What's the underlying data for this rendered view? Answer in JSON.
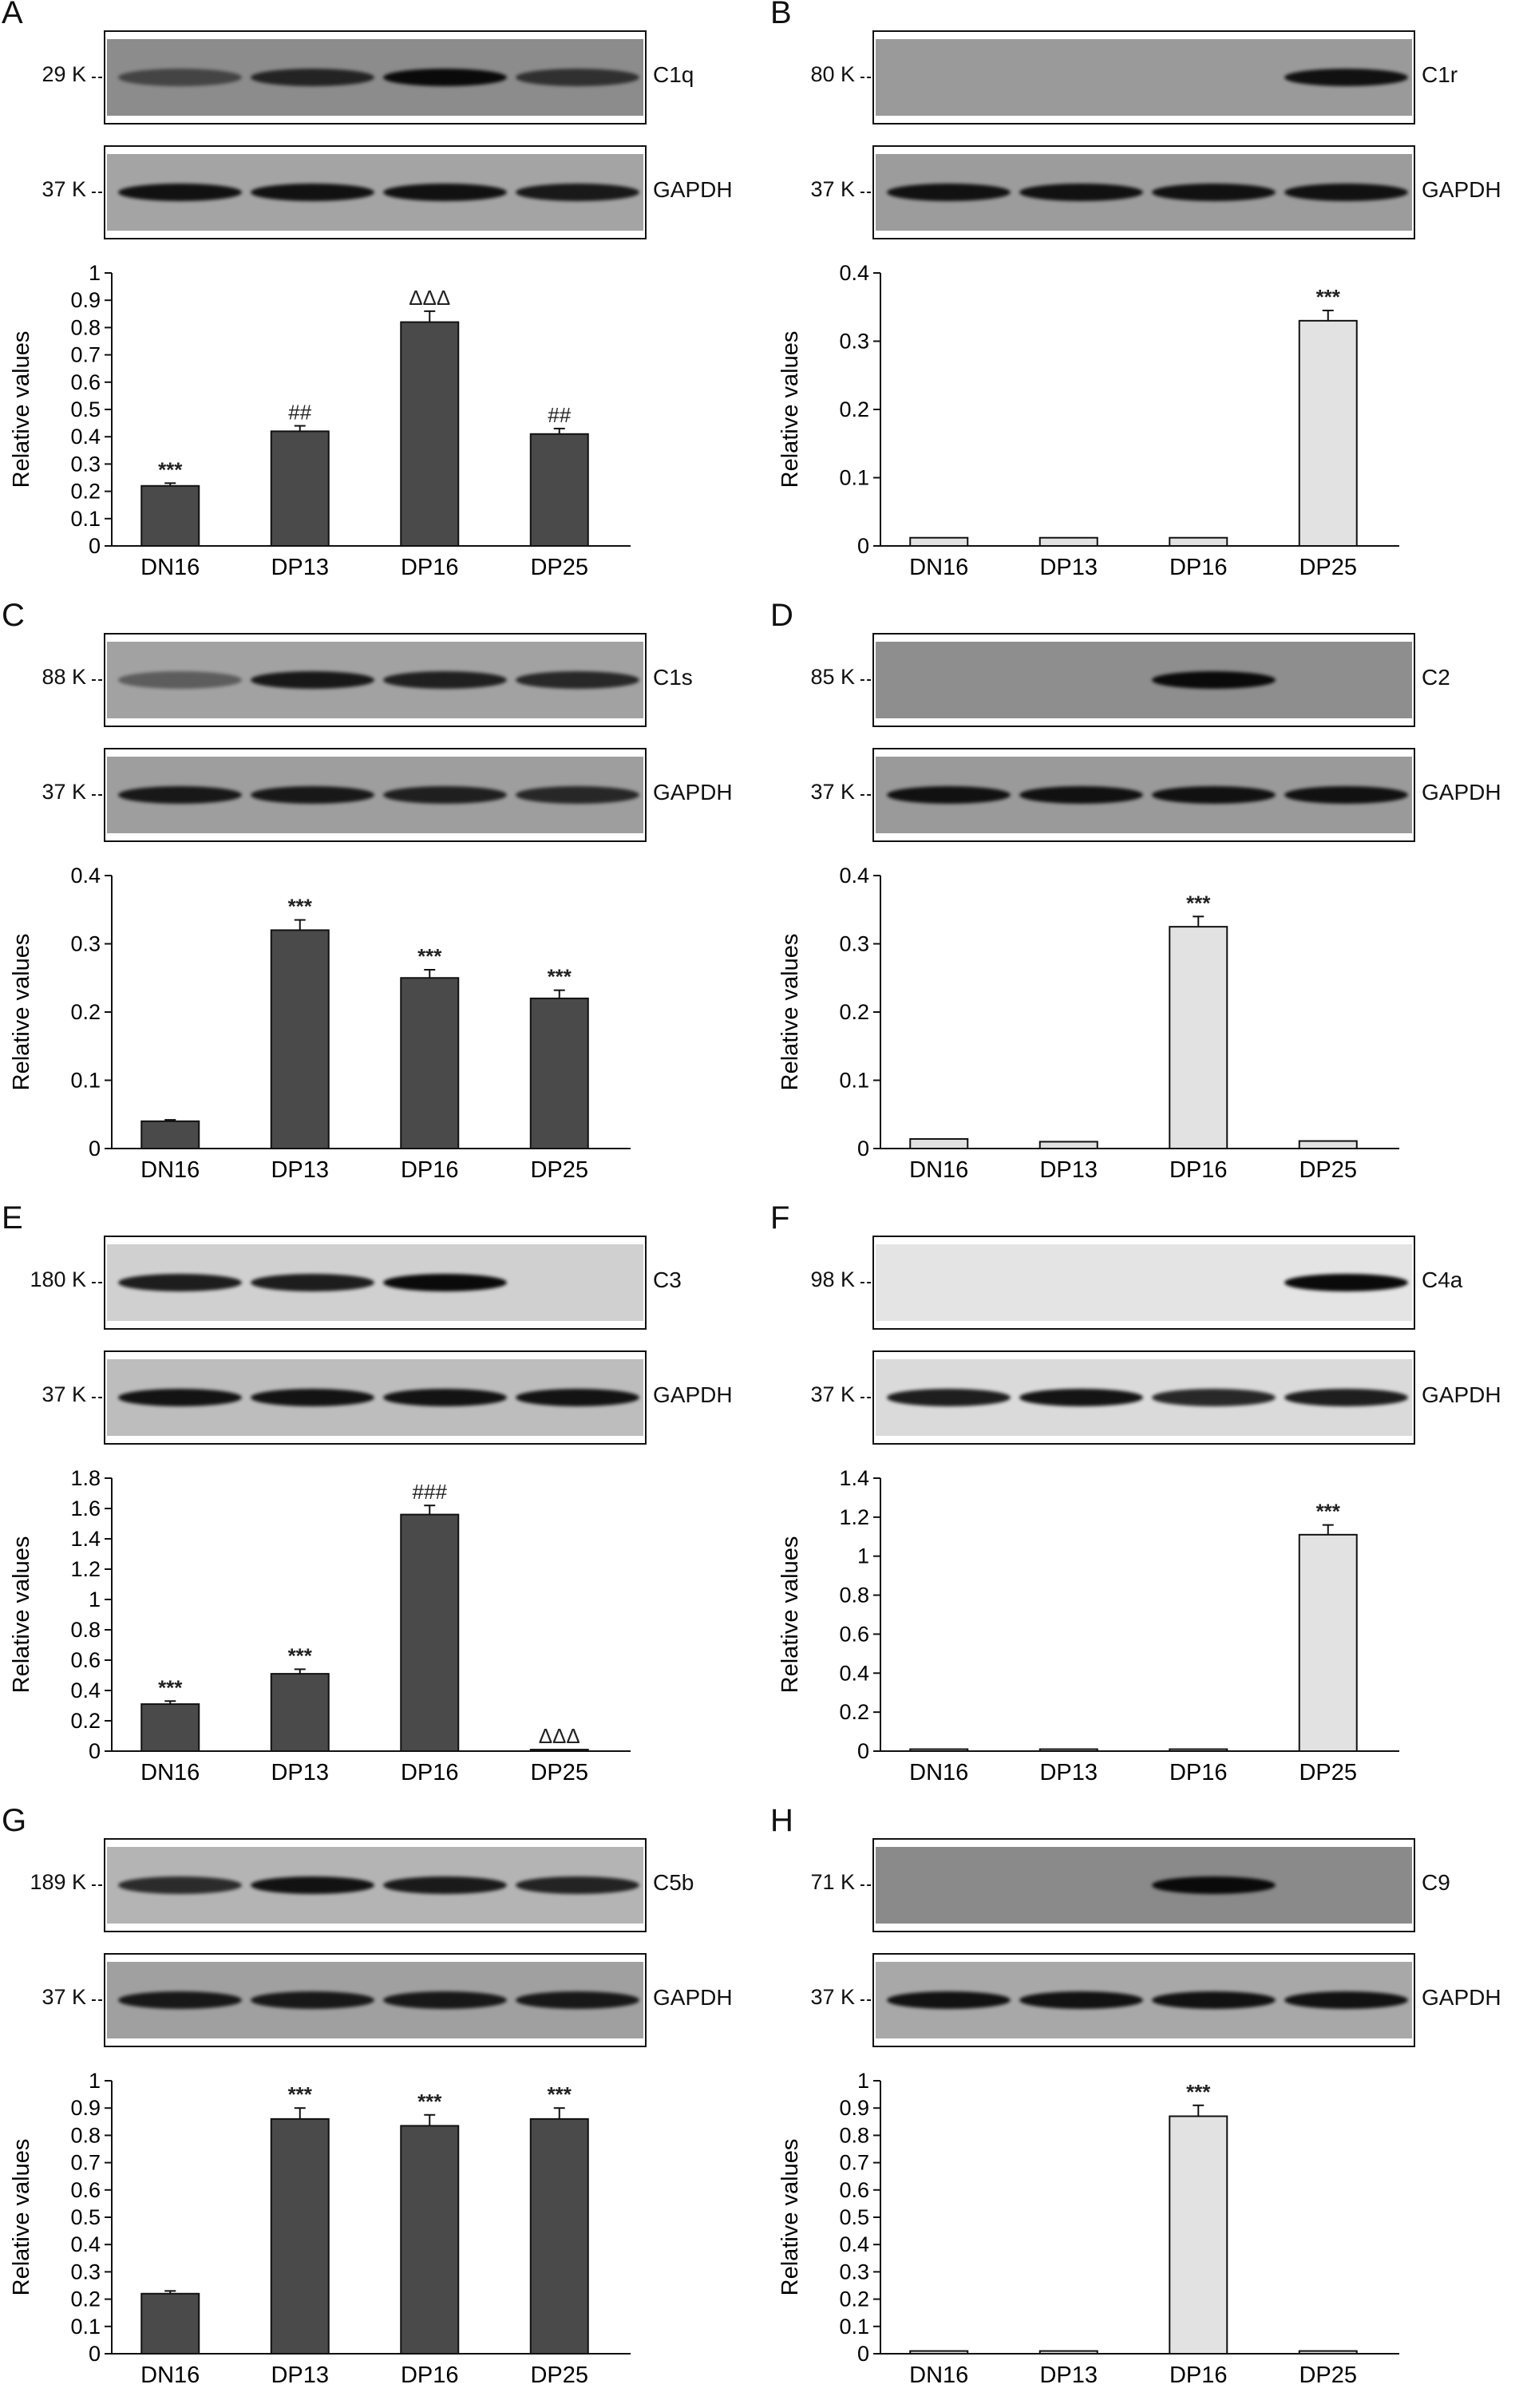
{
  "panels": [
    {
      "letter": "A",
      "protein": "C1q",
      "mw": "29 K",
      "ref_label": "GAPDH",
      "ref_mw": "37 K",
      "blot_bg": "#8c8c8c",
      "ref_bg": "#a4a4a4",
      "band_intensity": [
        0.55,
        0.8,
        1.0,
        0.7
      ],
      "ref_intensity": [
        0.95,
        0.95,
        0.95,
        0.9
      ],
      "chart_data": {
        "type": "bar",
        "categories": [
          "DN16",
          "DP13",
          "DP16",
          "DP25"
        ],
        "values": [
          0.22,
          0.42,
          0.82,
          0.41
        ],
        "errors": [
          0.01,
          0.02,
          0.04,
          0.02
        ],
        "annotations": [
          "***",
          "##",
          "ΔΔΔ",
          "##"
        ],
        "ylabel": "Relative values",
        "ylim": [
          0,
          1
        ],
        "yticks": [
          "0",
          "0.1",
          "0.2",
          "0.3",
          "0.4",
          "0.5",
          "0.6",
          "0.7",
          "0.8",
          "0.9",
          "1"
        ],
        "bar_style": "dark"
      }
    },
    {
      "letter": "B",
      "protein": "C1r",
      "mw": "80 K",
      "ref_label": "GAPDH",
      "ref_mw": "37 K",
      "blot_bg": "#9a9a9a",
      "ref_bg": "#9c9c9c",
      "band_intensity": [
        0,
        0,
        0,
        0.95
      ],
      "ref_intensity": [
        0.95,
        0.95,
        0.95,
        0.95
      ],
      "chart_data": {
        "type": "bar",
        "categories": [
          "DN16",
          "DP13",
          "DP16",
          "DP25"
        ],
        "values": [
          0.012,
          0.012,
          0.012,
          0.33
        ],
        "errors": [
          0,
          0,
          0,
          0.015
        ],
        "annotations": [
          "",
          "",
          "",
          "***"
        ],
        "ylabel": "Relative values",
        "ylim": [
          0,
          0.4
        ],
        "yticks": [
          "0",
          "0.1",
          "0.2",
          "0.3",
          "0.4"
        ],
        "bar_style": "light"
      }
    },
    {
      "letter": "C",
      "protein": "C1s",
      "mw": "88 K",
      "ref_label": "GAPDH",
      "ref_mw": "37 K",
      "blot_bg": "#a2a2a2",
      "ref_bg": "#9e9e9e",
      "band_intensity": [
        0.45,
        0.9,
        0.85,
        0.8
      ],
      "ref_intensity": [
        0.9,
        0.9,
        0.85,
        0.8
      ],
      "chart_data": {
        "type": "bar",
        "categories": [
          "DN16",
          "DP13",
          "DP16",
          "DP25"
        ],
        "values": [
          0.04,
          0.32,
          0.25,
          0.22
        ],
        "errors": [
          0.002,
          0.015,
          0.012,
          0.012
        ],
        "annotations": [
          "",
          "***",
          "***",
          "***"
        ],
        "ylabel": "Relative values",
        "ylim": [
          0,
          0.4
        ],
        "yticks": [
          "0",
          "0.1",
          "0.2",
          "0.3",
          "0.4"
        ],
        "bar_style": "dark"
      }
    },
    {
      "letter": "D",
      "protein": "C2",
      "mw": "85 K",
      "ref_label": "GAPDH",
      "ref_mw": "37 K",
      "blot_bg": "#8e8e8e",
      "ref_bg": "#9a9a9a",
      "band_intensity": [
        0,
        0,
        1.0,
        0
      ],
      "ref_intensity": [
        0.95,
        0.95,
        0.95,
        0.95
      ],
      "chart_data": {
        "type": "bar",
        "categories": [
          "DN16",
          "DP13",
          "DP16",
          "DP25"
        ],
        "values": [
          0.014,
          0.01,
          0.325,
          0.011
        ],
        "errors": [
          0,
          0,
          0.015,
          0
        ],
        "annotations": [
          "",
          "",
          "***",
          ""
        ],
        "ylabel": "Relative values",
        "ylim": [
          0,
          0.4
        ],
        "yticks": [
          "0",
          "0.1",
          "0.2",
          "0.3",
          "0.4"
        ],
        "bar_style": "light"
      }
    },
    {
      "letter": "E",
      "protein": "C3",
      "mw": "180 K",
      "ref_label": "GAPDH",
      "ref_mw": "37 K",
      "blot_bg": "#d0d0d0",
      "ref_bg": "#bdbdbd",
      "band_intensity": [
        0.9,
        0.9,
        1.0,
        0
      ],
      "ref_intensity": [
        0.95,
        0.95,
        0.95,
        0.95
      ],
      "chart_data": {
        "type": "bar",
        "categories": [
          "DN16",
          "DP13",
          "DP16",
          "DP25"
        ],
        "values": [
          0.31,
          0.51,
          1.56,
          0.01
        ],
        "errors": [
          0.02,
          0.03,
          0.06,
          0
        ],
        "annotations": [
          "***",
          "***",
          "###",
          "ΔΔΔ"
        ],
        "ylabel": "Relative values",
        "ylim": [
          0,
          1.8
        ],
        "yticks": [
          "0",
          "0.2",
          "0.4",
          "0.6",
          "0.8",
          "1",
          "1.2",
          "1.4",
          "1.6",
          "1.8"
        ],
        "bar_style": "dark"
      }
    },
    {
      "letter": "F",
      "protein": "C4a",
      "mw": "98 K",
      "ref_label": "GAPDH",
      "ref_mw": "37 K",
      "blot_bg": "#e4e4e4",
      "ref_bg": "#dadada",
      "band_intensity": [
        0,
        0,
        0,
        1.0
      ],
      "ref_intensity": [
        0.9,
        0.95,
        0.85,
        0.9
      ],
      "chart_data": {
        "type": "bar",
        "categories": [
          "DN16",
          "DP13",
          "DP16",
          "DP25"
        ],
        "values": [
          0.01,
          0.01,
          0.01,
          1.11
        ],
        "errors": [
          0,
          0,
          0,
          0.05
        ],
        "annotations": [
          "",
          "",
          "",
          "***"
        ],
        "ylabel": "Relative values",
        "ylim": [
          0,
          1.4
        ],
        "yticks": [
          "0",
          "0.2",
          "0.4",
          "0.6",
          "0.8",
          "1",
          "1.2",
          "1.4"
        ],
        "bar_style": "light"
      }
    },
    {
      "letter": "G",
      "protein": "C5b",
      "mw": "189 K",
      "ref_label": "GAPDH",
      "ref_mw": "37 K",
      "blot_bg": "#b4b4b4",
      "ref_bg": "#a0a0a0",
      "band_intensity": [
        0.8,
        0.95,
        0.9,
        0.85
      ],
      "ref_intensity": [
        0.9,
        0.9,
        0.9,
        0.9
      ],
      "chart_data": {
        "type": "bar",
        "categories": [
          "DN16",
          "DP13",
          "DP16",
          "DP25"
        ],
        "values": [
          0.22,
          0.86,
          0.835,
          0.86
        ],
        "errors": [
          0.01,
          0.04,
          0.04,
          0.04
        ],
        "annotations": [
          "",
          "***",
          "***",
          "***"
        ],
        "ylabel": "Relative values",
        "ylim": [
          0,
          1
        ],
        "yticks": [
          "0",
          "0.1",
          "0.2",
          "0.3",
          "0.4",
          "0.5",
          "0.6",
          "0.7",
          "0.8",
          "0.9",
          "1"
        ],
        "bar_style": "dark"
      }
    },
    {
      "letter": "H",
      "protein": "C9",
      "mw": "71 K",
      "ref_label": "GAPDH",
      "ref_mw": "37 K",
      "blot_bg": "#8a8a8a",
      "ref_bg": "#a8a8a8",
      "band_intensity": [
        0,
        0,
        1.0,
        0
      ],
      "ref_intensity": [
        0.95,
        0.95,
        0.95,
        0.95
      ],
      "chart_data": {
        "type": "bar",
        "categories": [
          "DN16",
          "DP13",
          "DP16",
          "DP25"
        ],
        "values": [
          0.01,
          0.01,
          0.87,
          0.01
        ],
        "errors": [
          0,
          0,
          0.04,
          0
        ],
        "annotations": [
          "",
          "",
          "***",
          ""
        ],
        "ylabel": "Relative values",
        "ylim": [
          0,
          1
        ],
        "yticks": [
          "0",
          "0.1",
          "0.2",
          "0.3",
          "0.4",
          "0.5",
          "0.6",
          "0.7",
          "0.8",
          "0.9",
          "1"
        ],
        "bar_style": "light"
      }
    }
  ]
}
